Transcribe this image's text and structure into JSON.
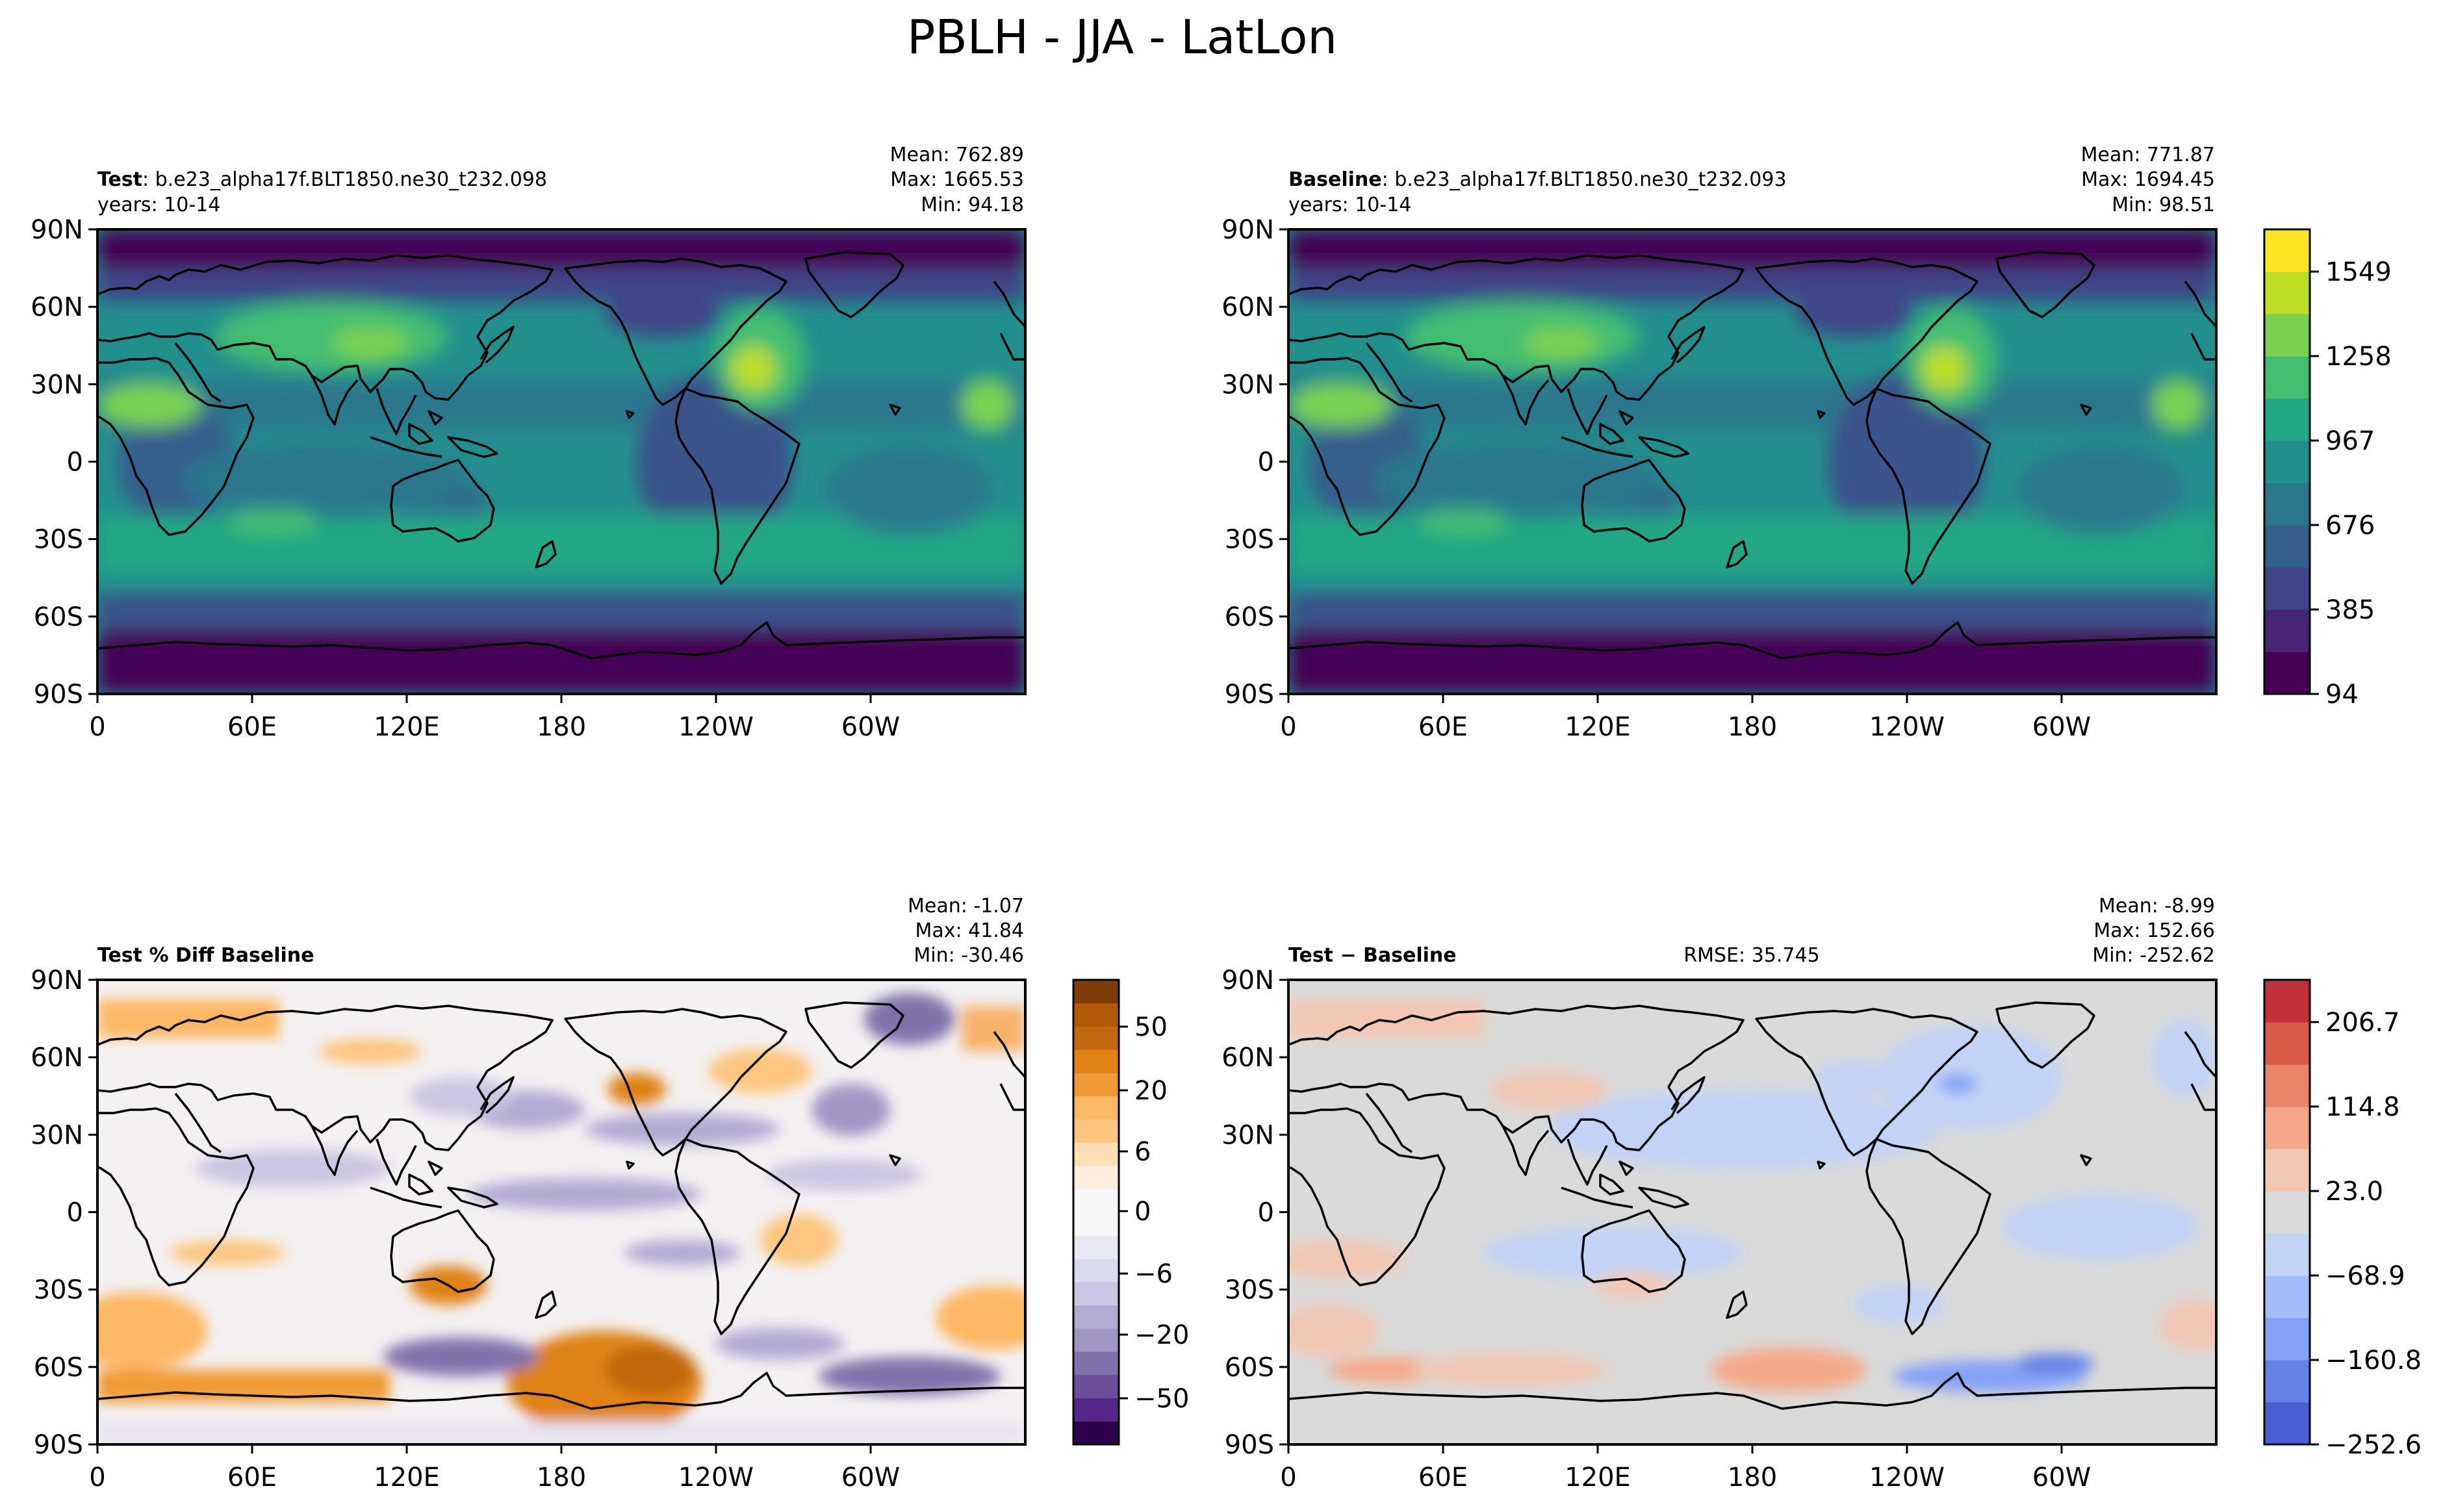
{
  "title": "PBLH - JJA - LatLon",
  "x_ticks": [
    "0",
    "60E",
    "120E",
    "180",
    "120W",
    "60W"
  ],
  "y_ticks": [
    "90N",
    "60N",
    "30N",
    "0",
    "30S",
    "60S",
    "90S"
  ],
  "panels": {
    "test": {
      "label_bold": "Test",
      "label_rest": ": b.e23_alpha17f.BLT1850.ne30_t232.098",
      "years": "years: 10-14",
      "mean": "Mean: 762.89",
      "max": "Max: 1665.53",
      "min": "Min: 94.18"
    },
    "baseline": {
      "label_bold": "Baseline",
      "label_rest": ": b.e23_alpha17f.BLT1850.ne30_t232.093",
      "years": "years: 10-14",
      "mean": "Mean: 771.87",
      "max": "Max: 1694.45",
      "min": "Min: 98.51"
    },
    "pctdiff": {
      "label_bold": "Test % Diff Baseline",
      "mean": "Mean: -1.07",
      "max": "Max: 41.84",
      "min": "Min: -30.46"
    },
    "diff": {
      "label_bold": "Test − Baseline",
      "rmse": "RMSE: 35.745",
      "mean": "Mean: -8.99",
      "max": "Max: 152.66",
      "min": "Min: -252.62"
    }
  },
  "colorbars": {
    "viridis": {
      "ticks": [
        "94",
        "385",
        "676",
        "967",
        "1258",
        "1549"
      ],
      "colors": [
        "#440154",
        "#482475",
        "#414487",
        "#355f8d",
        "#2a788e",
        "#21908d",
        "#22a884",
        "#42be71",
        "#7ad151",
        "#bddf26",
        "#fde725"
      ]
    },
    "puor": {
      "ticks": [
        "50",
        "20",
        "6",
        "0",
        "−6",
        "−20",
        "−50"
      ],
      "colors": [
        "#2d004b",
        "#542788",
        "#6c4f9b",
        "#8073ac",
        "#a096c4",
        "#b2abd2",
        "#cbc6e1",
        "#d8daeb",
        "#e8e8f0",
        "#f7f7f7",
        "#f7f7f7",
        "#fdeee0",
        "#fee0b6",
        "#fdc680",
        "#fdb863",
        "#f09a36",
        "#e08214",
        "#c46810",
        "#b35806",
        "#7f3b08"
      ]
    },
    "coolwarm": {
      "ticks": [
        "206.7",
        "114.8",
        "23.0",
        "−68.9",
        "−160.8",
        "−252.6"
      ],
      "colors": [
        "#4a5fd3",
        "#6282e8",
        "#84a3f5",
        "#a3bdfb",
        "#c2d3f6",
        "#dadada",
        "#f2c8b3",
        "#f4aa8a",
        "#ea8466",
        "#d85b48",
        "#c2303a"
      ]
    }
  }
}
